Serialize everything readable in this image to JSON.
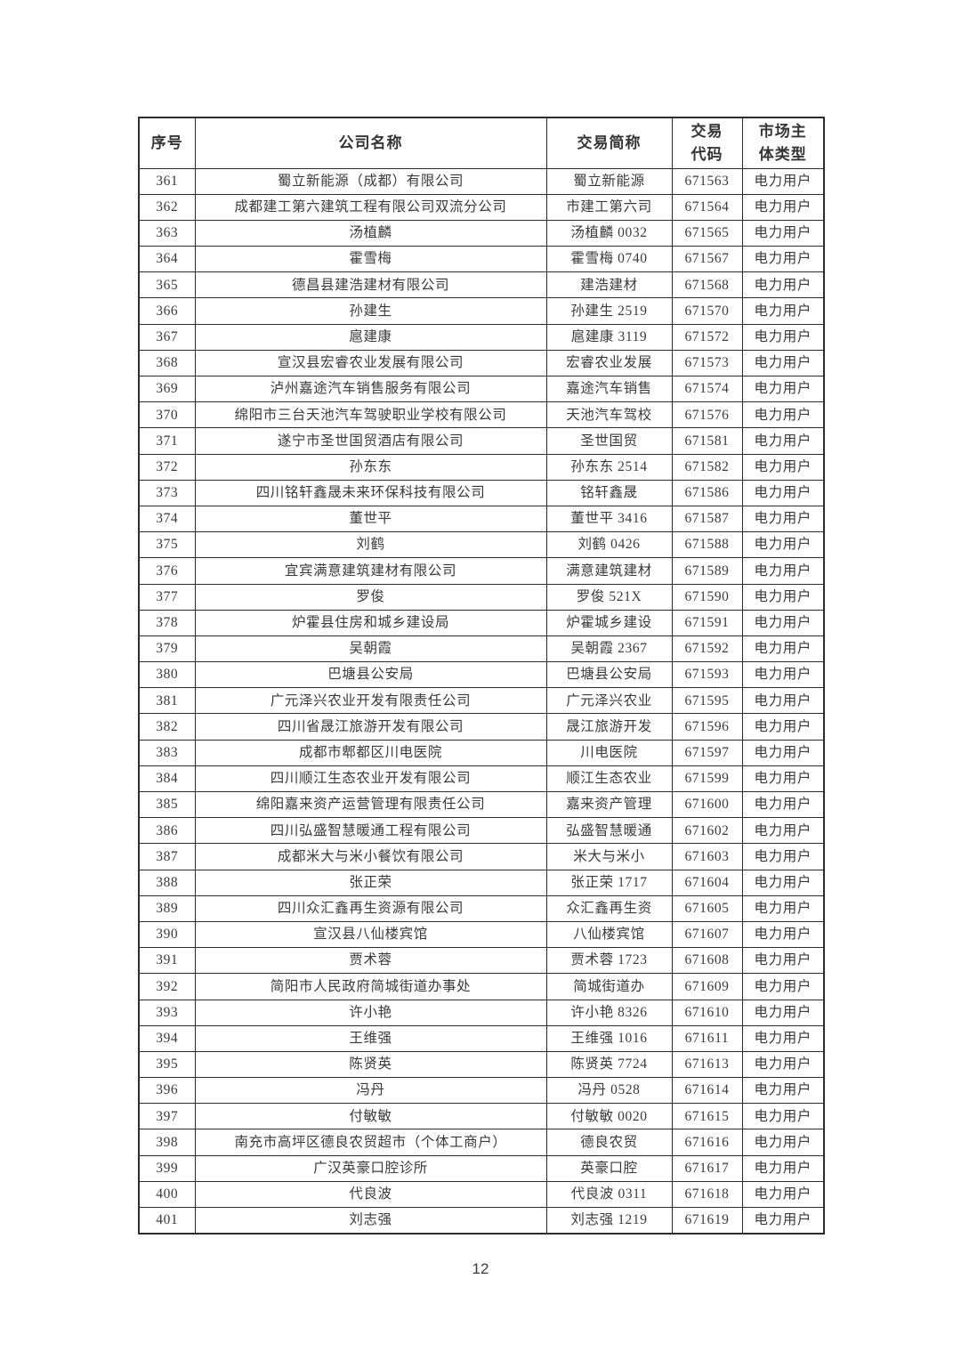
{
  "page_number": "12",
  "colors": {
    "text": "#3a3a3a",
    "border": "#2c2c2c",
    "background": "#ffffff"
  },
  "table": {
    "columns": [
      {
        "key": "seq",
        "label": "序号"
      },
      {
        "key": "comp",
        "label": "公司名称"
      },
      {
        "key": "abbr",
        "label": "交易简称"
      },
      {
        "key": "code",
        "label": "交易\n代码"
      },
      {
        "key": "type",
        "label": "市场主\n体类型"
      }
    ],
    "rows": [
      [
        "361",
        "蜀立新能源（成都）有限公司",
        "蜀立新能源",
        "671563",
        "电力用户"
      ],
      [
        "362",
        "成都建工第六建筑工程有限公司双流分公司",
        "市建工第六司",
        "671564",
        "电力用户"
      ],
      [
        "363",
        "汤植麟",
        "汤植麟 0032",
        "671565",
        "电力用户"
      ],
      [
        "364",
        "霍雪梅",
        "霍雪梅 0740",
        "671567",
        "电力用户"
      ],
      [
        "365",
        "德昌县建浩建材有限公司",
        "建浩建材",
        "671568",
        "电力用户"
      ],
      [
        "366",
        "孙建生",
        "孙建生 2519",
        "671570",
        "电力用户"
      ],
      [
        "367",
        "扈建康",
        "扈建康 3119",
        "671572",
        "电力用户"
      ],
      [
        "368",
        "宣汉县宏睿农业发展有限公司",
        "宏睿农业发展",
        "671573",
        "电力用户"
      ],
      [
        "369",
        "泸州嘉途汽车销售服务有限公司",
        "嘉途汽车销售",
        "671574",
        "电力用户"
      ],
      [
        "370",
        "绵阳市三台天池汽车驾驶职业学校有限公司",
        "天池汽车驾校",
        "671576",
        "电力用户"
      ],
      [
        "371",
        "遂宁市圣世国贸酒店有限公司",
        "圣世国贸",
        "671581",
        "电力用户"
      ],
      [
        "372",
        "孙东东",
        "孙东东 2514",
        "671582",
        "电力用户"
      ],
      [
        "373",
        "四川铭轩鑫晟未来环保科技有限公司",
        "铭轩鑫晟",
        "671586",
        "电力用户"
      ],
      [
        "374",
        "董世平",
        "董世平 3416",
        "671587",
        "电力用户"
      ],
      [
        "375",
        "刘鹤",
        "刘鹤 0426",
        "671588",
        "电力用户"
      ],
      [
        "376",
        "宜宾满意建筑建材有限公司",
        "满意建筑建材",
        "671589",
        "电力用户"
      ],
      [
        "377",
        "罗俊",
        "罗俊 521X",
        "671590",
        "电力用户"
      ],
      [
        "378",
        "炉霍县住房和城乡建设局",
        "炉霍城乡建设",
        "671591",
        "电力用户"
      ],
      [
        "379",
        "吴朝霞",
        "吴朝霞 2367",
        "671592",
        "电力用户"
      ],
      [
        "380",
        "巴塘县公安局",
        "巴塘县公安局",
        "671593",
        "电力用户"
      ],
      [
        "381",
        "广元泽兴农业开发有限责任公司",
        "广元泽兴农业",
        "671595",
        "电力用户"
      ],
      [
        "382",
        "四川省晟江旅游开发有限公司",
        "晟江旅游开发",
        "671596",
        "电力用户"
      ],
      [
        "383",
        "成都市郫都区川电医院",
        "川电医院",
        "671597",
        "电力用户"
      ],
      [
        "384",
        "四川顺江生态农业开发有限公司",
        "顺江生态农业",
        "671599",
        "电力用户"
      ],
      [
        "385",
        "绵阳嘉来资产运营管理有限责任公司",
        "嘉来资产管理",
        "671600",
        "电力用户"
      ],
      [
        "386",
        "四川弘盛智慧暖通工程有限公司",
        "弘盛智慧暖通",
        "671602",
        "电力用户"
      ],
      [
        "387",
        "成都米大与米小餐饮有限公司",
        "米大与米小",
        "671603",
        "电力用户"
      ],
      [
        "388",
        "张正荣",
        "张正荣 1717",
        "671604",
        "电力用户"
      ],
      [
        "389",
        "四川众汇鑫再生资源有限公司",
        "众汇鑫再生资",
        "671605",
        "电力用户"
      ],
      [
        "390",
        "宣汉县八仙楼宾馆",
        "八仙楼宾馆",
        "671607",
        "电力用户"
      ],
      [
        "391",
        "贾术蓉",
        "贾术蓉 1723",
        "671608",
        "电力用户"
      ],
      [
        "392",
        "简阳市人民政府简城街道办事处",
        "简城街道办",
        "671609",
        "电力用户"
      ],
      [
        "393",
        "许小艳",
        "许小艳 8326",
        "671610",
        "电力用户"
      ],
      [
        "394",
        "王维强",
        "王维强 1016",
        "671611",
        "电力用户"
      ],
      [
        "395",
        "陈贤英",
        "陈贤英 7724",
        "671613",
        "电力用户"
      ],
      [
        "396",
        "冯丹",
        "冯丹 0528",
        "671614",
        "电力用户"
      ],
      [
        "397",
        "付敏敏",
        "付敏敏 0020",
        "671615",
        "电力用户"
      ],
      [
        "398",
        "南充市高坪区德良农贸超市（个体工商户）",
        "德良农贸",
        "671616",
        "电力用户"
      ],
      [
        "399",
        "广汉英豪口腔诊所",
        "英豪口腔",
        "671617",
        "电力用户"
      ],
      [
        "400",
        "代良波",
        "代良波 0311",
        "671618",
        "电力用户"
      ],
      [
        "401",
        "刘志强",
        "刘志强 1219",
        "671619",
        "电力用户"
      ]
    ]
  }
}
